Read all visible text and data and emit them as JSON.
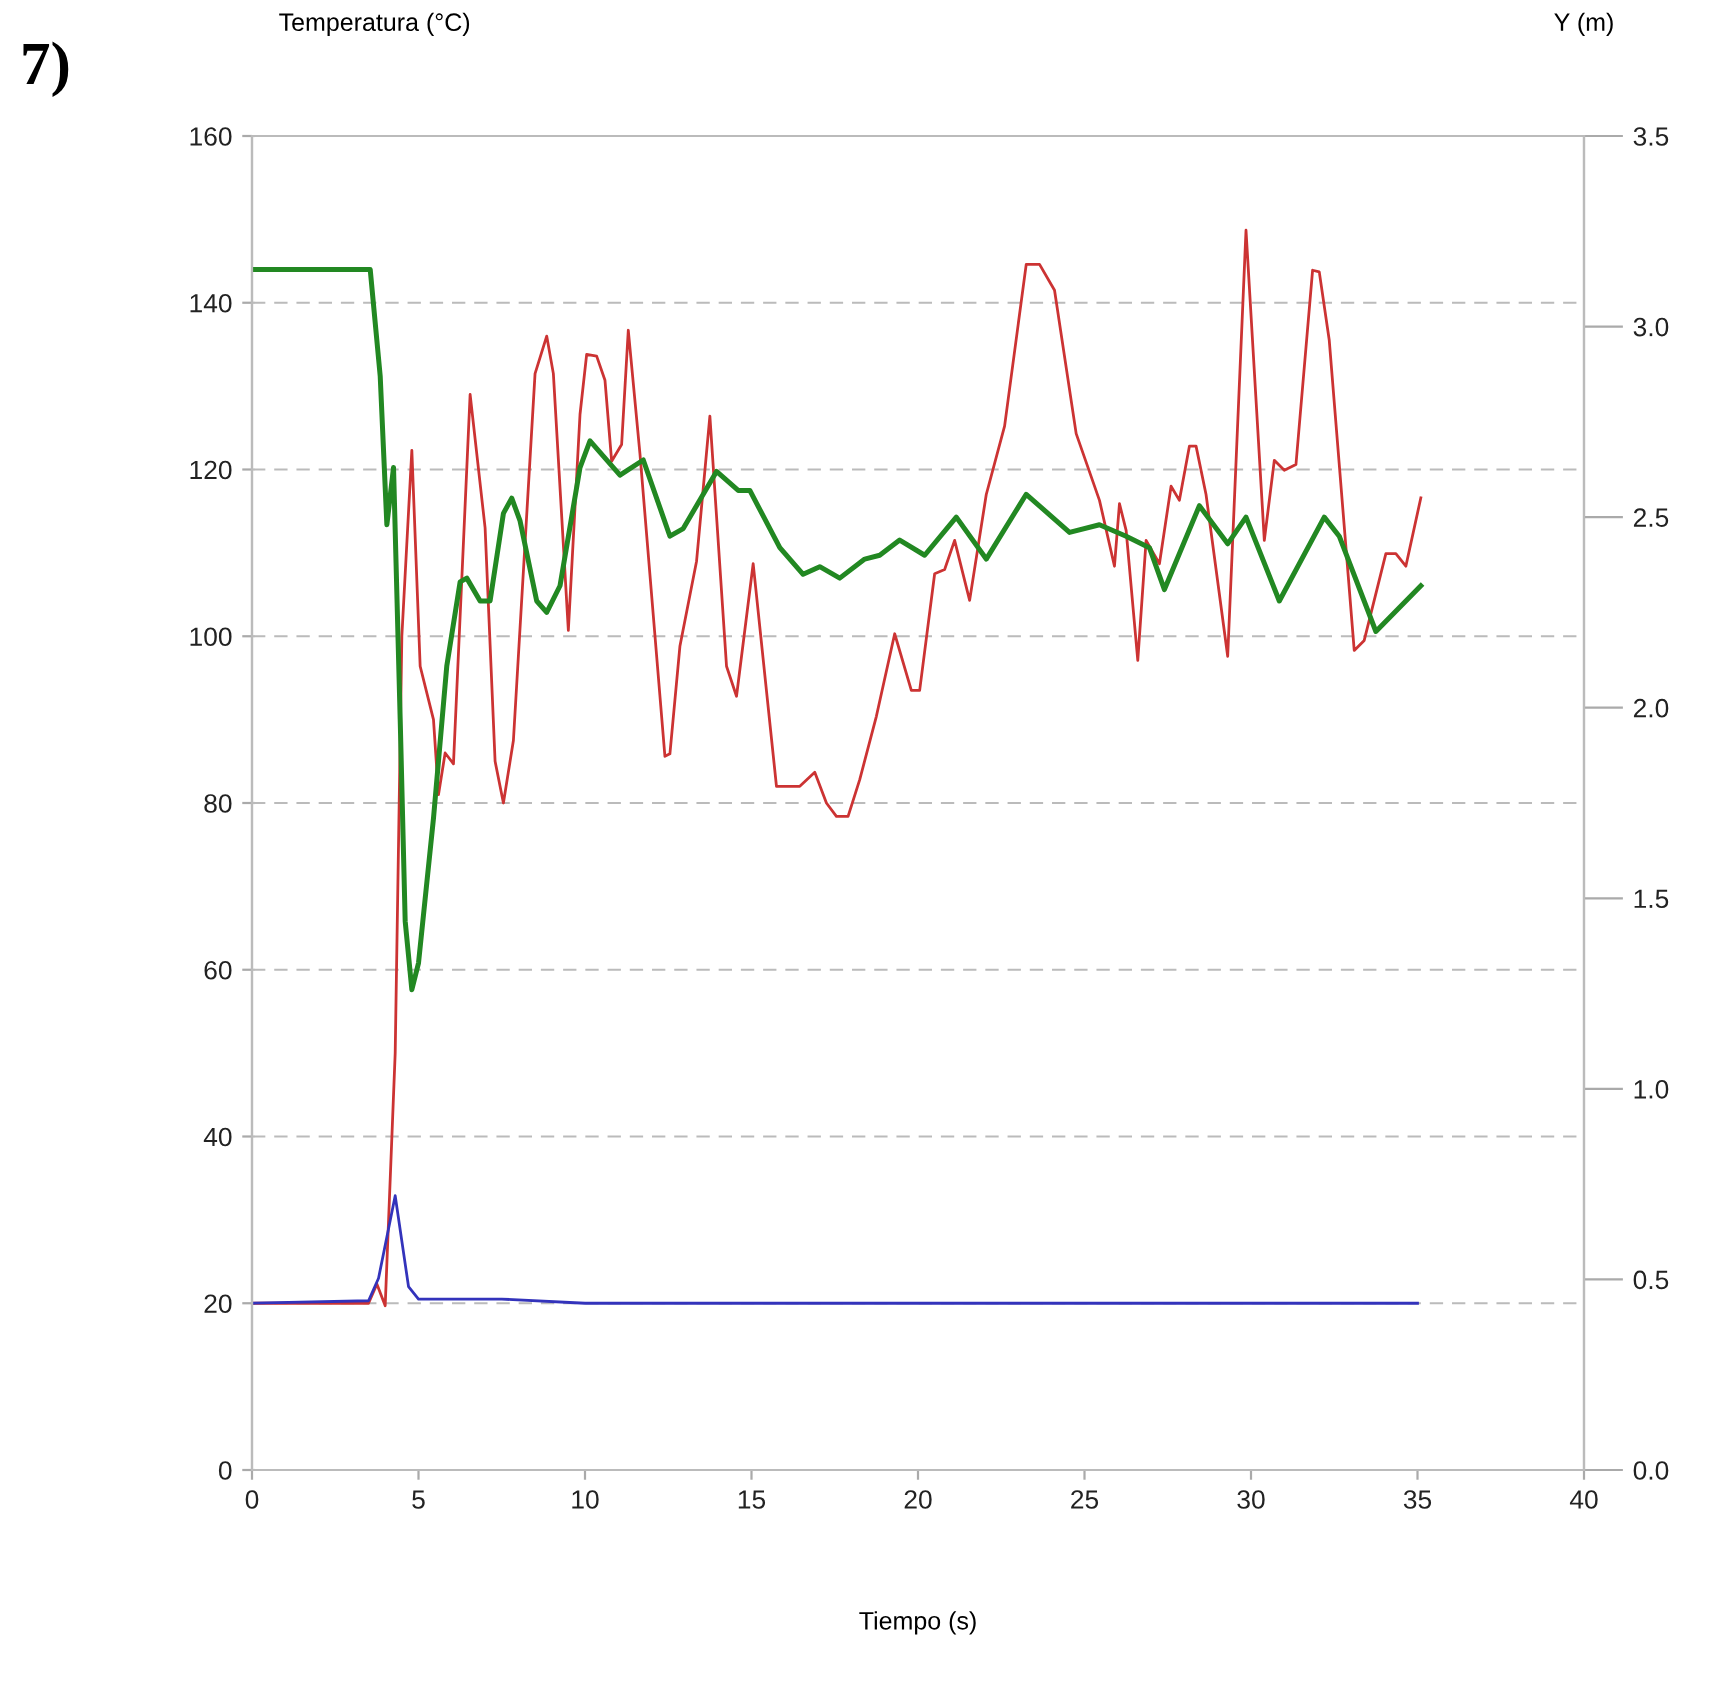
{
  "chart_data": {
    "type": "line",
    "xlabel": "Tiempo (s)",
    "ylabel": "Temperatura (°C)",
    "y2label": "Y (m)",
    "annotations": [
      "7)"
    ],
    "xlim": [
      0,
      40
    ],
    "xticks": [
      0,
      5,
      10,
      15,
      20,
      25,
      30,
      35,
      40
    ],
    "ylim": [
      0,
      160
    ],
    "yticks": [
      0,
      20,
      40,
      60,
      80,
      100,
      120,
      140,
      160
    ],
    "y2lim": [
      0,
      3.5
    ],
    "y2ticks": [
      {
        "value": 0,
        "label": "0.0"
      },
      {
        "value": 0.5,
        "label": "0.5"
      },
      {
        "value": 1,
        "label": "1.0"
      },
      {
        "value": 1.5,
        "label": "1.5"
      },
      {
        "value": 2,
        "label": "2.0"
      },
      {
        "value": 2.5,
        "label": "2.5"
      },
      {
        "value": 3,
        "label": "3.0"
      },
      {
        "value": 3.5,
        "label": "3.5"
      }
    ],
    "grid": "y",
    "line_style": "solid",
    "series": [
      {
        "color": "#cc3333",
        "x": [
          0,
          3.5,
          3.75,
          4.0,
          4.3,
          4.5,
          4.8,
          5.05,
          5.45,
          5.6,
          5.8,
          6.05,
          6.55,
          7.0,
          7.3,
          7.55,
          7.85,
          8.5,
          8.85,
          9.05,
          9.5,
          9.85,
          10.05,
          10.35,
          10.6,
          10.8,
          11.1,
          11.3,
          11.65,
          12.4,
          12.55,
          12.85,
          13.35,
          13.75,
          14.25,
          14.55,
          15.05,
          15.75,
          16.45,
          16.9,
          17.25,
          17.55,
          17.9,
          18.25,
          18.75,
          19.3,
          19.8,
          20.05,
          20.5,
          20.8,
          21.1,
          21.55,
          22.05,
          22.6,
          23.25,
          23.65,
          24.1,
          24.75,
          25.45,
          25.9,
          26.05,
          26.25,
          26.6,
          26.85,
          27.25,
          27.6,
          27.85,
          28.15,
          28.35,
          28.65,
          29.3,
          29.85,
          30.4,
          30.7,
          31.0,
          31.35,
          31.85,
          32.05,
          32.35,
          33.1,
          33.4,
          34.05,
          34.35,
          34.65,
          35.1
        ],
        "values": [
          20,
          20,
          22.3,
          19.7,
          50,
          100,
          122.3,
          96.4,
          90,
          81,
          86,
          84.7,
          129,
          113,
          85,
          80,
          87.5,
          131.5,
          136,
          131.5,
          100.7,
          126.6,
          133.8,
          133.6,
          130.7,
          121,
          123,
          136.7,
          121.9,
          85.6,
          85.9,
          98.8,
          109,
          126.4,
          96.4,
          92.8,
          108.7,
          82,
          82,
          83.7,
          80,
          78.4,
          78.4,
          82.8,
          90.4,
          100.3,
          93.5,
          93.5,
          107.5,
          108,
          111.5,
          104.3,
          117,
          125.2,
          144.6,
          144.6,
          141.5,
          124.3,
          116.3,
          108.4,
          115.9,
          112.7,
          97.1,
          111.5,
          108.7,
          118,
          116.3,
          122.8,
          122.8,
          117,
          97.6,
          148.7,
          111.5,
          121.1,
          119.9,
          120.6,
          143.9,
          143.7,
          135.5,
          98.3,
          99.5,
          109.9,
          109.9,
          108.4,
          116.6
        ]
      },
      {
        "color": "#228822",
        "axis": "y2",
        "x": [
          0,
          3.55,
          3.85,
          4.05,
          4.25,
          4.45,
          4.6,
          4.8,
          5.0,
          5.45,
          5.85,
          6.25,
          6.45,
          6.85,
          7.15,
          7.55,
          7.8,
          8.05,
          8.55,
          8.85,
          9.25,
          9.85,
          10.15,
          10.55,
          11.05,
          11.75,
          12.55,
          12.95,
          13.95,
          14.6,
          14.95,
          15.85,
          16.55,
          17.05,
          17.65,
          18.4,
          18.85,
          19.45,
          20.2,
          21.15,
          22.05,
          23.25,
          24.55,
          25.45,
          26.25,
          26.95,
          27.4,
          28.45,
          29.3,
          29.85,
          30.85,
          32.2,
          32.65,
          33.75,
          35.1
        ],
        "values": [
          3.15,
          3.15,
          2.87,
          2.48,
          2.63,
          1.97,
          1.44,
          1.26,
          1.33,
          1.71,
          2.11,
          2.33,
          2.34,
          2.28,
          2.28,
          2.51,
          2.55,
          2.49,
          2.28,
          2.25,
          2.32,
          2.63,
          2.7,
          2.66,
          2.61,
          2.65,
          2.45,
          2.47,
          2.62,
          2.57,
          2.57,
          2.42,
          2.35,
          2.37,
          2.34,
          2.39,
          2.4,
          2.44,
          2.4,
          2.5,
          2.39,
          2.56,
          2.46,
          2.48,
          2.45,
          2.42,
          2.31,
          2.53,
          2.43,
          2.5,
          2.28,
          2.5,
          2.45,
          2.2,
          2.32
        ]
      },
      {
        "color": "#3333bb",
        "x": [
          0,
          3.5,
          3.8,
          4.3,
          4.7,
          5.0,
          7.5,
          10,
          20,
          35
        ],
        "values": [
          20,
          20.3,
          23,
          32.9,
          22,
          20.5,
          20.5,
          20,
          20,
          20
        ]
      }
    ]
  }
}
